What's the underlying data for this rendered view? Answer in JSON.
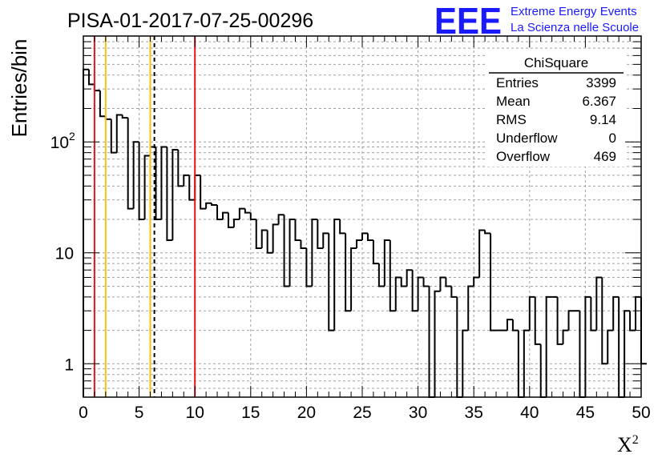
{
  "header": {
    "run_title": "PISA-01-2017-07-25-00296",
    "logo_text": "EEE",
    "logo_line1": "Extreme Energy Events",
    "logo_line2": "La Scienza nelle Scuole"
  },
  "colors": {
    "logo_blue": "#1a1aff",
    "red_line": "#e8141e",
    "yellow_line": "#f2c418",
    "histogram": "#000000",
    "grid": "#a0a0a0"
  },
  "stats": {
    "title": "ChiSquare",
    "rows": [
      {
        "label": "Entries",
        "value": "3399"
      },
      {
        "label": "Mean",
        "value": "6.367"
      },
      {
        "label": "RMS",
        "value": "9.14"
      },
      {
        "label": "Underflow",
        "value": "0"
      },
      {
        "label": "Overflow",
        "value": "469"
      }
    ]
  },
  "chart_data": {
    "type": "bar",
    "xlabel": "X",
    "xlabel_sup": "2",
    "ylabel": "Entries/bin",
    "xlim": [
      0,
      50
    ],
    "ylim": [
      0.5,
      900
    ],
    "log_y": true,
    "grid": true,
    "x_ticks": [
      "0",
      "5",
      "10",
      "15",
      "20",
      "25",
      "30",
      "35",
      "40",
      "45",
      "50"
    ],
    "y_ticks": [
      {
        "value": 1,
        "label": "1"
      },
      {
        "value": 10,
        "label": "10"
      },
      {
        "value": 100,
        "label": "10",
        "sup": "2"
      }
    ],
    "bin_width": 0.5,
    "values": [
      450,
      330,
      290,
      170,
      160,
      80,
      175,
      165,
      25,
      100,
      20,
      75,
      90,
      20,
      90,
      13,
      85,
      40,
      50,
      30,
      50,
      25,
      28,
      27,
      20,
      23,
      17,
      20,
      25,
      23,
      20,
      11,
      16,
      10,
      18,
      22,
      5,
      20,
      13,
      11,
      5,
      20,
      11,
      15,
      2,
      20,
      15,
      3,
      11,
      13,
      15,
      13,
      8,
      5,
      13,
      3,
      6,
      5,
      7,
      3,
      6,
      5,
      0.3,
      4.5,
      6,
      5,
      4,
      0.3,
      2,
      5,
      6,
      16,
      15,
      2,
      2,
      2,
      2.5,
      2,
      0.3,
      2,
      4,
      1.5,
      0.3,
      4,
      4,
      1.5,
      2,
      3,
      3,
      0.3,
      4,
      2,
      6,
      1,
      2,
      4,
      0.3,
      3,
      2,
      4,
      1
    ],
    "markers": [
      {
        "x": 1,
        "color": "red",
        "style": "solid"
      },
      {
        "x": 2,
        "color": "yellow",
        "style": "solid"
      },
      {
        "x": 6,
        "color": "yellow",
        "style": "solid"
      },
      {
        "x": 6.367,
        "color": "black",
        "style": "dashed"
      },
      {
        "x": 10,
        "color": "red",
        "style": "solid"
      }
    ]
  }
}
